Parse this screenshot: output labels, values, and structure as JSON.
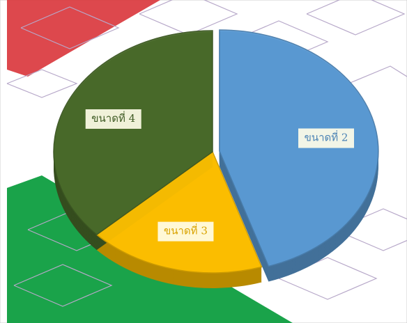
{
  "chart_data": {
    "type": "pie",
    "categories": [
      "ขนาดที่ 2",
      "ขนาดที่ 3",
      "ขนาดที่ 4"
    ],
    "values": [
      45,
      18,
      37
    ],
    "colors": [
      "#5b9bd5",
      "#ffc000",
      "#4a6b2a"
    ]
  }
}
